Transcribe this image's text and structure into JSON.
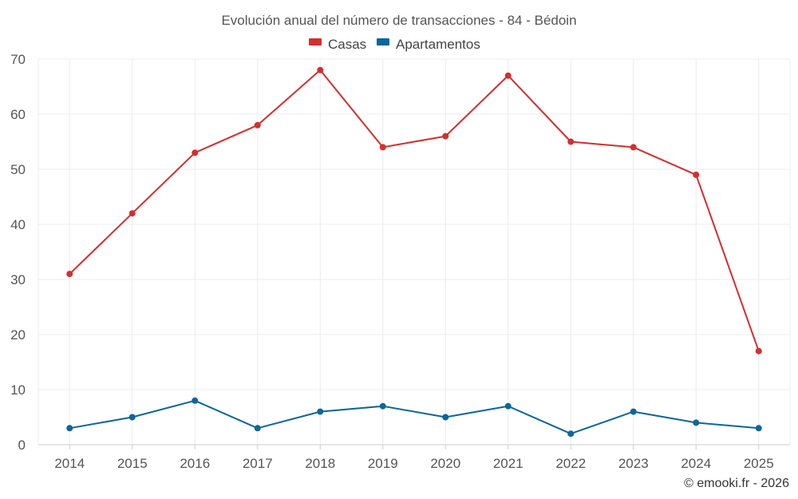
{
  "chart_data": {
    "type": "line",
    "title": "Evolución anual del número de transacciones - 84 - Bédoin",
    "categories": [
      "2014",
      "2015",
      "2016",
      "2017",
      "2018",
      "2019",
      "2020",
      "2021",
      "2022",
      "2023",
      "2024",
      "2025"
    ],
    "series": [
      {
        "name": "Casas",
        "color": "#d32f2f",
        "values": [
          31,
          42,
          53,
          58,
          68,
          54,
          56,
          67,
          55,
          54,
          49,
          17
        ]
      },
      {
        "name": "Apartamentos",
        "color": "#0d6699",
        "values": [
          3,
          5,
          8,
          3,
          6,
          7,
          5,
          7,
          2,
          6,
          4,
          3
        ]
      }
    ],
    "ylim": [
      0,
      70
    ],
    "yticks": [
      "0",
      "10",
      "20",
      "30",
      "40",
      "50",
      "60",
      "70"
    ],
    "grid": true,
    "legend": "top-center",
    "xlabel": "",
    "ylabel": ""
  },
  "credit": "© emooki.fr - 2026"
}
